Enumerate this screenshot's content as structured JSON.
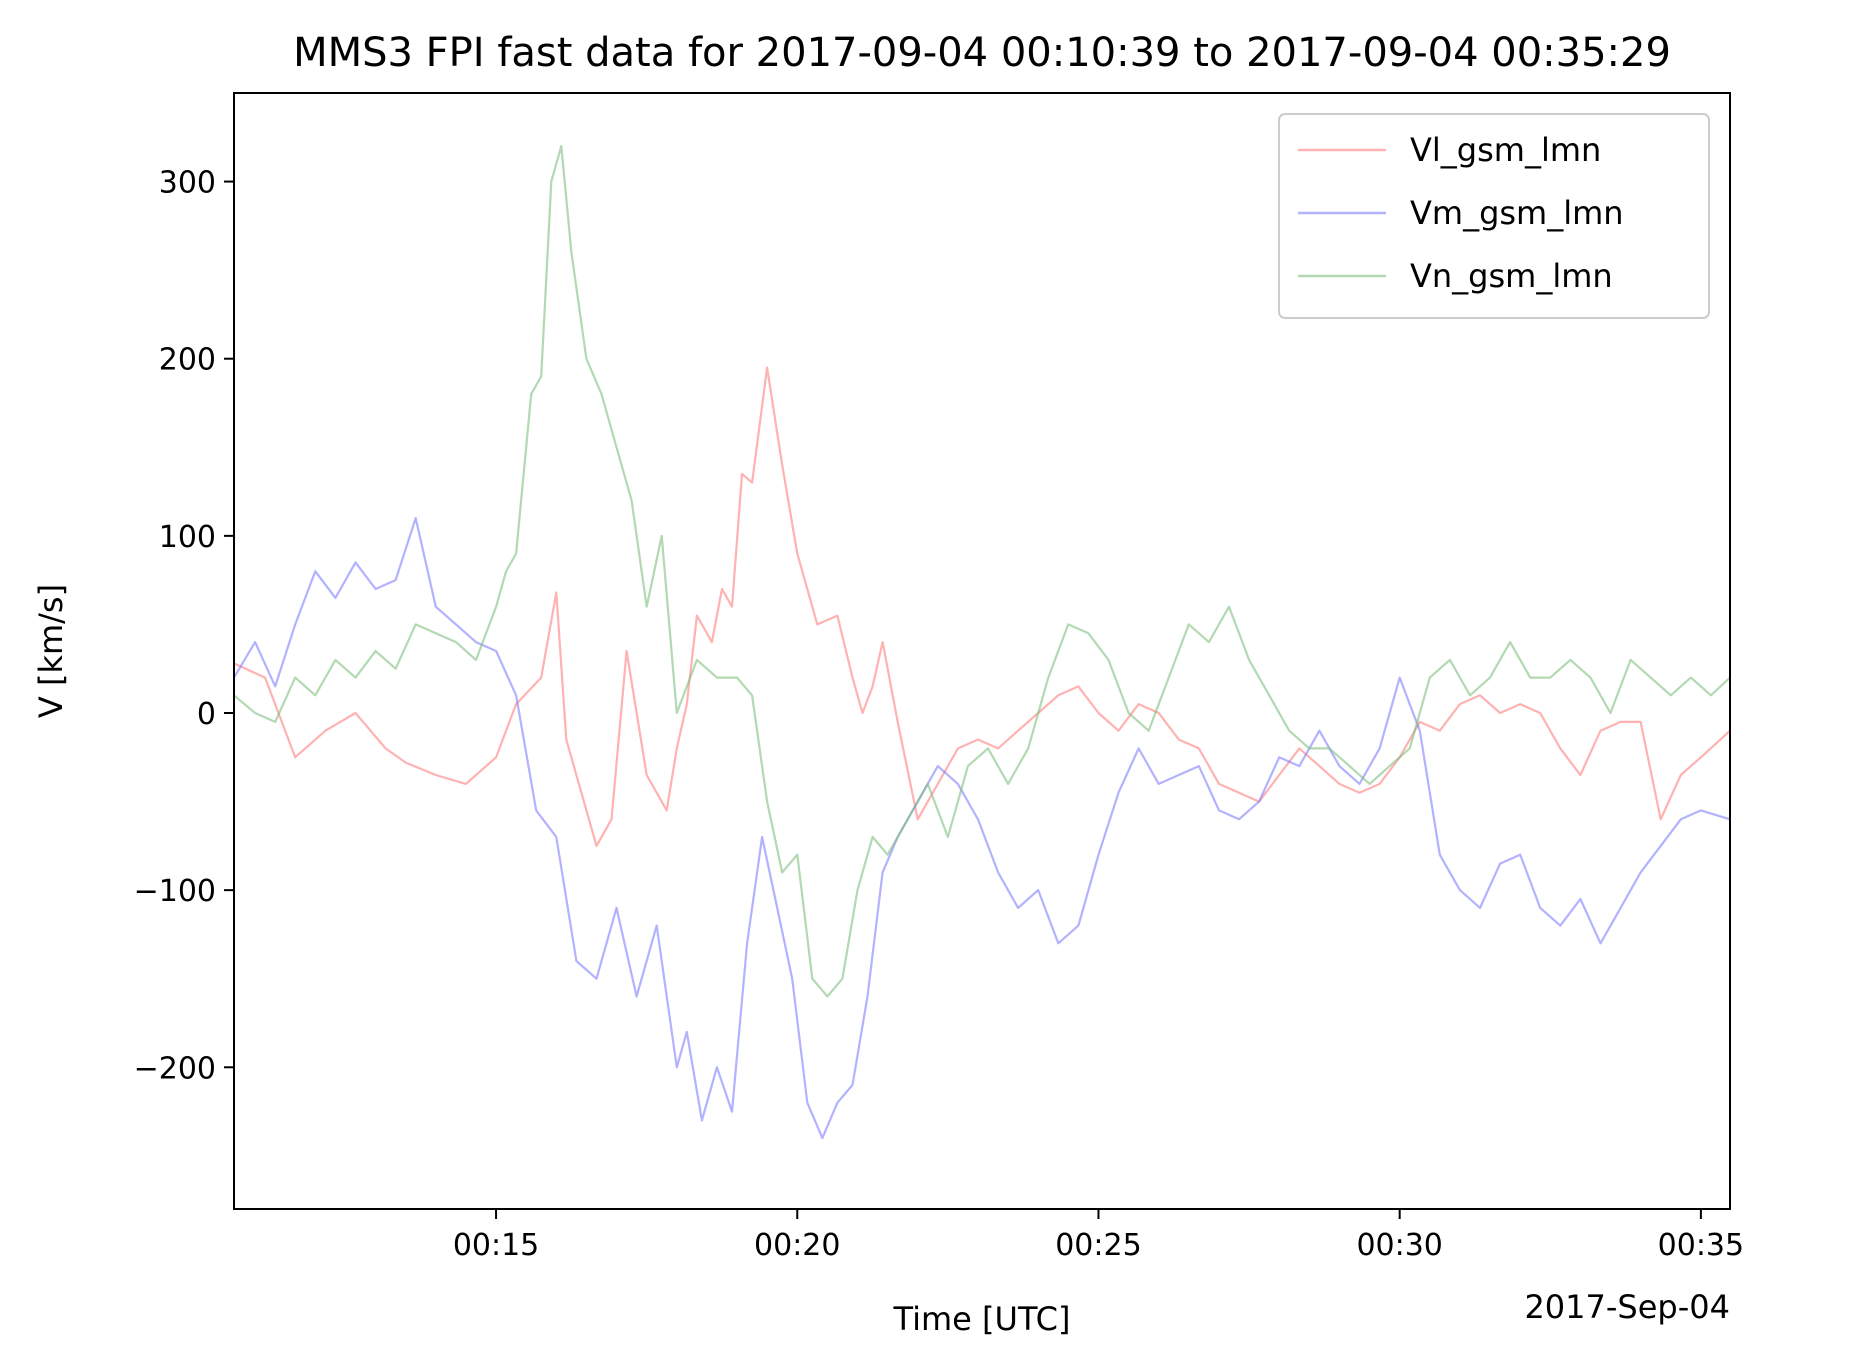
{
  "chart_data": {
    "type": "line",
    "title": "MMS3 FPI fast data for 2017-09-04 00:10:39 to 2017-09-04 00:35:29",
    "xlabel": "Time [UTC]",
    "ylabel": "V [km/s]",
    "date_label": "2017-Sep-04",
    "xlim": [
      "00:10:39",
      "00:35:29"
    ],
    "ylim": [
      -280,
      350
    ],
    "x_ticks": [
      "00:15",
      "00:20",
      "00:25",
      "00:30",
      "00:35"
    ],
    "y_ticks": [
      300,
      200,
      100,
      0,
      -100,
      -200
    ],
    "y_tick_labels": [
      "300",
      "200",
      "100",
      "0",
      "−100",
      "−200"
    ],
    "grid": false,
    "legend_position": "top-right",
    "series": [
      {
        "name": "Vl_gsm_lmn",
        "color": "#ff7f7f",
        "x": [
          "00:10:39",
          "00:11:10",
          "00:11:40",
          "00:12:10",
          "00:12:40",
          "00:13:10",
          "00:13:30",
          "00:14:00",
          "00:14:30",
          "00:15:00",
          "00:15:20",
          "00:15:45",
          "00:16:00",
          "00:16:10",
          "00:16:25",
          "00:16:40",
          "00:16:55",
          "00:17:10",
          "00:17:30",
          "00:17:50",
          "00:18:00",
          "00:18:10",
          "00:18:20",
          "00:18:35",
          "00:18:45",
          "00:18:55",
          "00:19:05",
          "00:19:15",
          "00:19:30",
          "00:19:45",
          "00:20:00",
          "00:20:20",
          "00:20:40",
          "00:20:55",
          "00:21:05",
          "00:21:15",
          "00:21:25",
          "00:21:40",
          "00:22:00",
          "00:22:20",
          "00:22:40",
          "00:23:00",
          "00:23:20",
          "00:23:40",
          "00:24:00",
          "00:24:20",
          "00:24:40",
          "00:25:00",
          "00:25:20",
          "00:25:40",
          "00:26:00",
          "00:26:20",
          "00:26:40",
          "00:27:00",
          "00:27:20",
          "00:27:40",
          "00:28:00",
          "00:28:20",
          "00:28:40",
          "00:29:00",
          "00:29:20",
          "00:29:40",
          "00:30:00",
          "00:30:20",
          "00:30:40",
          "00:31:00",
          "00:31:20",
          "00:31:40",
          "00:32:00",
          "00:32:20",
          "00:32:40",
          "00:33:00",
          "00:33:20",
          "00:33:40",
          "00:34:00",
          "00:34:20",
          "00:34:40",
          "00:35:00",
          "00:35:29"
        ],
        "values": [
          28,
          20,
          -25,
          -10,
          0,
          -20,
          -28,
          -35,
          -40,
          -25,
          5,
          20,
          68,
          -15,
          -45,
          -75,
          -60,
          35,
          -35,
          -55,
          -20,
          5,
          55,
          40,
          70,
          60,
          135,
          130,
          195,
          140,
          90,
          50,
          55,
          20,
          0,
          15,
          40,
          -5,
          -60,
          -40,
          -20,
          -15,
          -20,
          -10,
          0,
          10,
          15,
          0,
          -10,
          5,
          0,
          -15,
          -20,
          -40,
          -45,
          -50,
          -35,
          -20,
          -30,
          -40,
          -45,
          -40,
          -25,
          -5,
          -10,
          5,
          10,
          0,
          5,
          0,
          -20,
          -35,
          -10,
          -5,
          -5,
          -60,
          -35,
          -25,
          -10
        ]
      },
      {
        "name": "Vm_gsm_lmn",
        "color": "#7f7fff",
        "x": [
          "00:10:39",
          "00:11:00",
          "00:11:20",
          "00:11:40",
          "00:12:00",
          "00:12:20",
          "00:12:40",
          "00:13:00",
          "00:13:20",
          "00:13:40",
          "00:14:00",
          "00:14:20",
          "00:14:40",
          "00:15:00",
          "00:15:20",
          "00:15:40",
          "00:16:00",
          "00:16:20",
          "00:16:40",
          "00:17:00",
          "00:17:20",
          "00:17:40",
          "00:18:00",
          "00:18:10",
          "00:18:25",
          "00:18:40",
          "00:18:55",
          "00:19:10",
          "00:19:25",
          "00:19:40",
          "00:19:55",
          "00:20:10",
          "00:20:25",
          "00:20:40",
          "00:20:55",
          "00:21:10",
          "00:21:25",
          "00:21:40",
          "00:22:00",
          "00:22:20",
          "00:22:40",
          "00:23:00",
          "00:23:20",
          "00:23:40",
          "00:24:00",
          "00:24:20",
          "00:24:40",
          "00:25:00",
          "00:25:20",
          "00:25:40",
          "00:26:00",
          "00:26:20",
          "00:26:40",
          "00:27:00",
          "00:27:20",
          "00:27:40",
          "00:28:00",
          "00:28:20",
          "00:28:40",
          "00:29:00",
          "00:29:20",
          "00:29:40",
          "00:30:00",
          "00:30:20",
          "00:30:40",
          "00:31:00",
          "00:31:20",
          "00:31:40",
          "00:32:00",
          "00:32:20",
          "00:32:40",
          "00:33:00",
          "00:33:20",
          "00:33:40",
          "00:34:00",
          "00:34:20",
          "00:34:40",
          "00:35:00",
          "00:35:29"
        ],
        "values": [
          20,
          40,
          15,
          50,
          80,
          65,
          85,
          70,
          75,
          110,
          60,
          50,
          40,
          35,
          10,
          -55,
          -70,
          -140,
          -150,
          -110,
          -160,
          -120,
          -200,
          -180,
          -230,
          -200,
          -225,
          -130,
          -70,
          -110,
          -150,
          -220,
          -240,
          -220,
          -210,
          -160,
          -90,
          -70,
          -50,
          -30,
          -40,
          -60,
          -90,
          -110,
          -100,
          -130,
          -120,
          -80,
          -45,
          -20,
          -40,
          -35,
          -30,
          -55,
          -60,
          -50,
          -25,
          -30,
          -10,
          -30,
          -40,
          -20,
          20,
          -10,
          -80,
          -100,
          -110,
          -85,
          -80,
          -110,
          -120,
          -105,
          -130,
          -110,
          -90,
          -75,
          -60,
          -55,
          -60
        ]
      },
      {
        "name": "Vn_gsm_lmn",
        "color": "#7fbf7f",
        "x": [
          "00:10:39",
          "00:11:00",
          "00:11:20",
          "00:11:40",
          "00:12:00",
          "00:12:20",
          "00:12:40",
          "00:13:00",
          "00:13:20",
          "00:13:40",
          "00:14:00",
          "00:14:20",
          "00:14:40",
          "00:15:00",
          "00:15:10",
          "00:15:20",
          "00:15:35",
          "00:15:45",
          "00:15:55",
          "00:16:05",
          "00:16:15",
          "00:16:30",
          "00:16:45",
          "00:17:00",
          "00:17:15",
          "00:17:30",
          "00:17:45",
          "00:18:00",
          "00:18:20",
          "00:18:40",
          "00:19:00",
          "00:19:15",
          "00:19:30",
          "00:19:45",
          "00:20:00",
          "00:20:15",
          "00:20:30",
          "00:20:45",
          "00:21:00",
          "00:21:15",
          "00:21:30",
          "00:21:50",
          "00:22:10",
          "00:22:30",
          "00:22:50",
          "00:23:10",
          "00:23:30",
          "00:23:50",
          "00:24:10",
          "00:24:30",
          "00:24:50",
          "00:25:10",
          "00:25:30",
          "00:25:50",
          "00:26:10",
          "00:26:30",
          "00:26:50",
          "00:27:10",
          "00:27:30",
          "00:27:50",
          "00:28:10",
          "00:28:30",
          "00:28:50",
          "00:29:10",
          "00:29:30",
          "00:29:50",
          "00:30:10",
          "00:30:30",
          "00:30:50",
          "00:31:10",
          "00:31:30",
          "00:31:50",
          "00:32:10",
          "00:32:30",
          "00:32:50",
          "00:33:10",
          "00:33:30",
          "00:33:50",
          "00:34:10",
          "00:34:30",
          "00:34:50",
          "00:35:10",
          "00:35:29"
        ],
        "values": [
          10,
          0,
          -5,
          20,
          10,
          30,
          20,
          35,
          25,
          50,
          45,
          40,
          30,
          60,
          80,
          90,
          180,
          190,
          300,
          320,
          260,
          200,
          180,
          150,
          120,
          60,
          100,
          0,
          30,
          20,
          20,
          10,
          -50,
          -90,
          -80,
          -150,
          -160,
          -150,
          -100,
          -70,
          -80,
          -60,
          -40,
          -70,
          -30,
          -20,
          -40,
          -20,
          20,
          50,
          45,
          30,
          0,
          -10,
          20,
          50,
          40,
          60,
          30,
          10,
          -10,
          -20,
          -20,
          -30,
          -40,
          -30,
          -20,
          20,
          30,
          10,
          20,
          40,
          20,
          20,
          30,
          20,
          0,
          30,
          20,
          10,
          20,
          10,
          20
        ]
      }
    ]
  }
}
